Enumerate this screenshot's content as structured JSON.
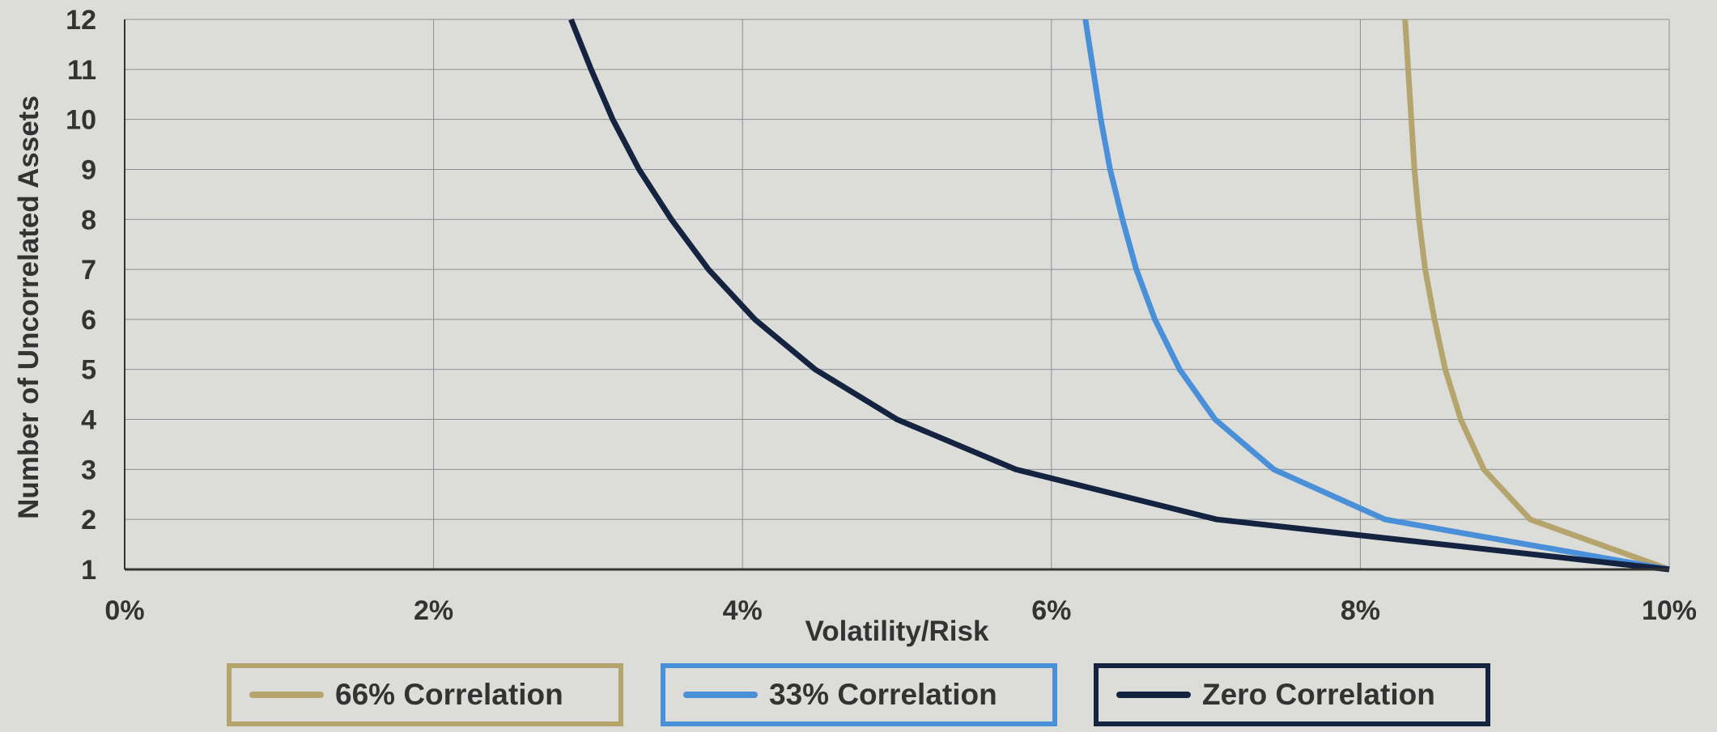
{
  "chart_data": {
    "type": "line",
    "xlabel": "Volatility/Risk",
    "ylabel": "Number of Uncorrelated Assets",
    "xlim": [
      0,
      10
    ],
    "ylim": [
      1,
      12
    ],
    "x_ticks": [
      "0%",
      "2%",
      "4%",
      "6%",
      "8%",
      "10%"
    ],
    "y_ticks": [
      "1",
      "2",
      "3",
      "4",
      "5",
      "6",
      "7",
      "8",
      "9",
      "10",
      "11",
      "12"
    ],
    "grid": true,
    "legend_position": "bottom",
    "series": [
      {
        "name": "66% Correlation",
        "color": "#b5a46c",
        "points": [
          [
            10.0,
            1
          ],
          [
            9.1,
            2
          ],
          [
            8.8,
            3
          ],
          [
            8.65,
            4
          ],
          [
            8.55,
            5
          ],
          [
            8.48,
            6
          ],
          [
            8.42,
            7
          ],
          [
            8.38,
            8
          ],
          [
            8.35,
            9
          ],
          [
            8.33,
            10
          ],
          [
            8.31,
            11
          ],
          [
            8.29,
            12
          ]
        ]
      },
      {
        "name": "33% Correlation",
        "color": "#4a90d9",
        "points": [
          [
            10.0,
            1
          ],
          [
            8.16,
            2
          ],
          [
            7.44,
            3
          ],
          [
            7.06,
            4
          ],
          [
            6.83,
            5
          ],
          [
            6.67,
            6
          ],
          [
            6.55,
            7
          ],
          [
            6.46,
            8
          ],
          [
            6.38,
            9
          ],
          [
            6.32,
            10
          ],
          [
            6.27,
            11
          ],
          [
            6.22,
            12
          ]
        ]
      },
      {
        "name": "Zero Correlation",
        "color": "#14233f",
        "points": [
          [
            10.0,
            1
          ],
          [
            7.07,
            2
          ],
          [
            5.77,
            3
          ],
          [
            5.0,
            4
          ],
          [
            4.47,
            5
          ],
          [
            4.08,
            6
          ],
          [
            3.78,
            7
          ],
          [
            3.54,
            8
          ],
          [
            3.33,
            9
          ],
          [
            3.16,
            10
          ],
          [
            3.02,
            11
          ],
          [
            2.89,
            12
          ]
        ]
      }
    ]
  }
}
